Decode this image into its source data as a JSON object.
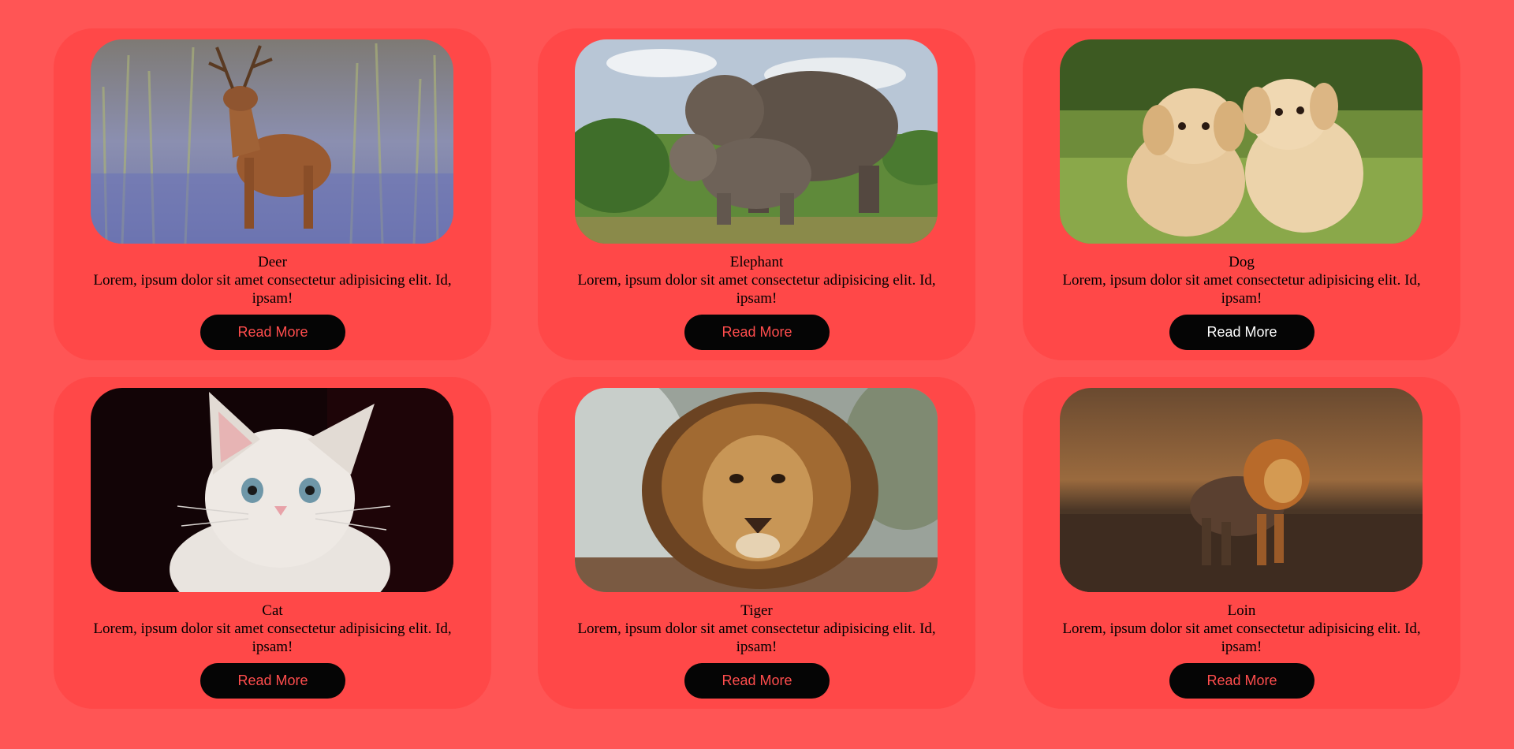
{
  "theme": {
    "page_background": "#ff5555",
    "card_background": "#ff4848",
    "button_background": "#050505",
    "button_text_accent": "#ff4d4d",
    "button_text_hover": "#ffffff"
  },
  "cards": [
    {
      "name": "deer",
      "title": "Deer",
      "description": "Lorem, ipsum dolor sit amet consectetur adipisicing elit. Id, ipsam!",
      "button_label": "Read More",
      "image_icon": "deer-photo"
    },
    {
      "name": "elephant",
      "title": "Elephant",
      "description": "Lorem, ipsum dolor sit amet consectetur adipisicing elit. Id, ipsam!",
      "button_label": "Read More",
      "image_icon": "elephant-photo"
    },
    {
      "name": "dog",
      "title": "Dog",
      "description": "Lorem, ipsum dolor sit amet consectetur adipisicing elit. Id, ipsam!",
      "button_label": "Read More",
      "image_icon": "puppies-photo"
    },
    {
      "name": "cat",
      "title": "Cat",
      "description": "Lorem, ipsum dolor sit amet consectetur adipisicing elit. Id, ipsam!",
      "button_label": "Read More",
      "image_icon": "kitten-photo"
    },
    {
      "name": "tiger",
      "title": "Tiger",
      "description": "Lorem, ipsum dolor sit amet consectetur adipisicing elit. Id, ipsam!",
      "button_label": "Read More",
      "image_icon": "lion-photo"
    },
    {
      "name": "loin",
      "title": "Loin",
      "description": "Lorem, ipsum dolor sit amet consectetur adipisicing elit. Id, ipsam!",
      "button_label": "Read More",
      "image_icon": "walking-lion-photo"
    }
  ]
}
